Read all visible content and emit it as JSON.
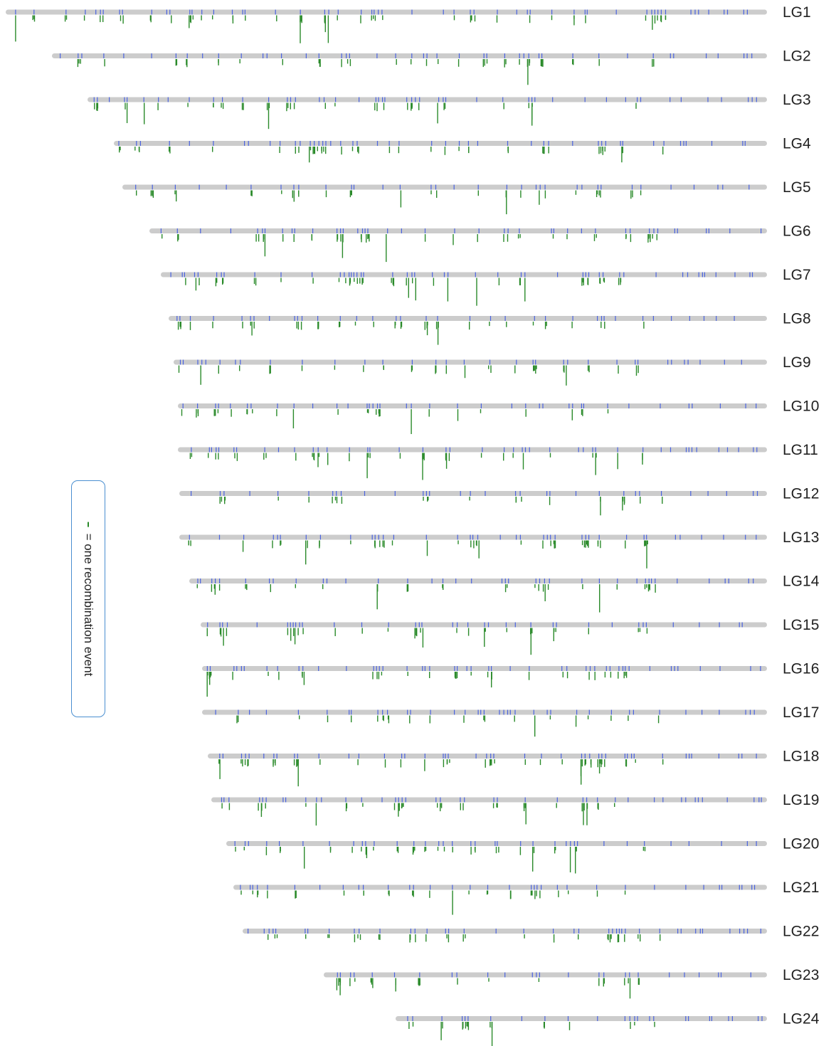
{
  "legend": {
    "symbol_name": "recombination-tick",
    "text": "= one recombination event"
  },
  "colors": {
    "chromosome": "#cccccc",
    "marker": "#4a63e0",
    "recombination": "#2a8a2a"
  },
  "chart_data": {
    "type": "linkage-map",
    "groups": [
      {
        "label": "LG1"
      },
      {
        "label": "LG2"
      },
      {
        "label": "LG3"
      },
      {
        "label": "LG4"
      },
      {
        "label": "LG5"
      },
      {
        "label": "LG6"
      },
      {
        "label": "LG7"
      },
      {
        "label": "LG8"
      },
      {
        "label": "LG9"
      },
      {
        "label": "LG10"
      },
      {
        "label": "LG11"
      },
      {
        "label": "LG12"
      },
      {
        "label": "LG13"
      },
      {
        "label": "LG14"
      },
      {
        "label": "LG15"
      },
      {
        "label": "LG16"
      },
      {
        "label": "LG17"
      },
      {
        "label": "LG18"
      },
      {
        "label": "LG19"
      },
      {
        "label": "LG20"
      },
      {
        "label": "LG21"
      },
      {
        "label": "LG22"
      },
      {
        "label": "LG23"
      },
      {
        "label": "LG24"
      }
    ]
  }
}
